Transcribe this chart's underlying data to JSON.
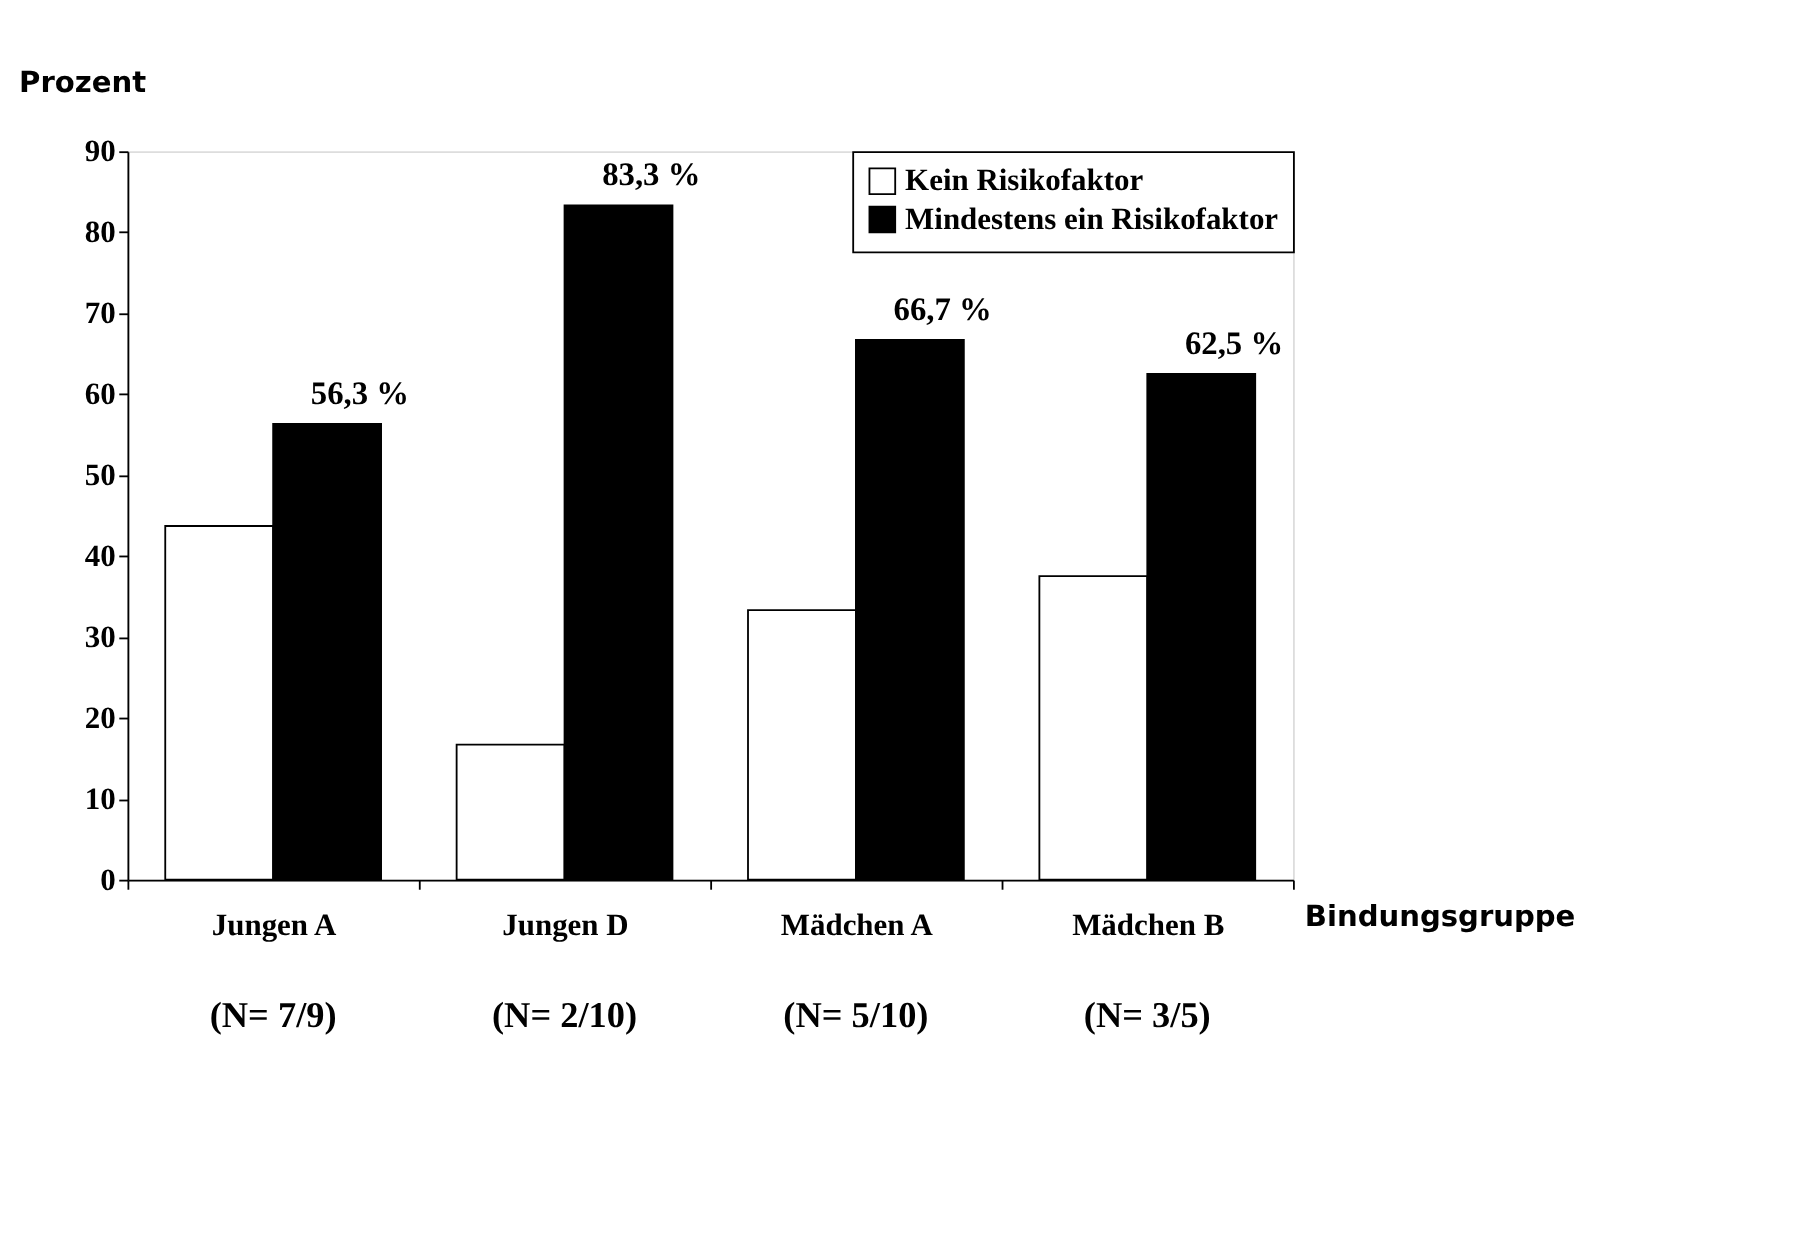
{
  "chart_data": {
    "type": "bar",
    "ylabel": "Prozent",
    "xlabel": "Bindungsgruppe",
    "categories": [
      "Jungen A",
      "Jungen D",
      "Mädchen A",
      "Mädchen B"
    ],
    "series": [
      {
        "name": "Kein Risikofaktor",
        "color": "#ffffff",
        "values": [
          43.7,
          16.7,
          33.3,
          37.5
        ]
      },
      {
        "name": "Mindestens ein Risikofaktor",
        "color": "#000000",
        "values": [
          56.3,
          83.3,
          66.7,
          62.5
        ],
        "value_labels": [
          "56,3 %",
          "83,3 %",
          "66,7 %",
          "62,5 %"
        ]
      }
    ],
    "annotations": [
      "(N= 7/9)",
      "(N= 2/10)",
      "(N= 5/10)",
      "(N= 3/5)"
    ],
    "ylim": [
      0,
      90
    ],
    "yticks": [
      0,
      10,
      20,
      30,
      40,
      50,
      60,
      70,
      80,
      90
    ],
    "grid": false,
    "legend": "top right"
  }
}
